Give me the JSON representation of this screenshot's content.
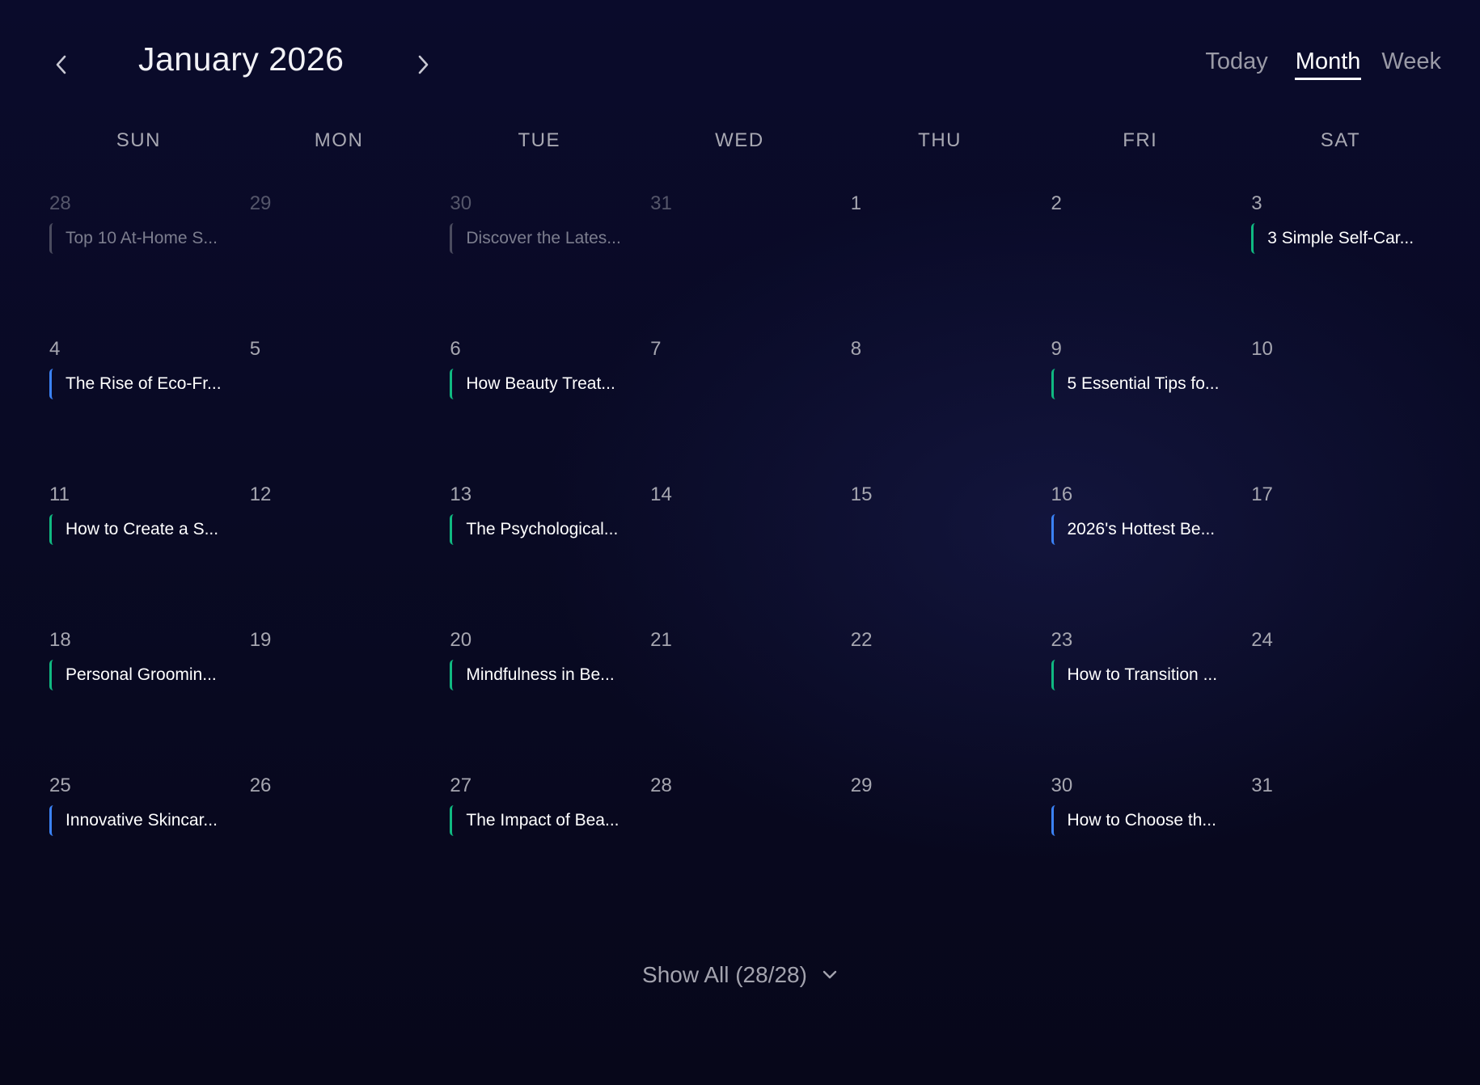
{
  "header": {
    "title": "January 2026",
    "prev_icon": "chevron-left-icon",
    "next_icon": "chevron-right-icon",
    "views": [
      {
        "label": "Today",
        "active": false
      },
      {
        "label": "Month",
        "active": true
      },
      {
        "label": "Week",
        "active": false
      }
    ]
  },
  "weekdays": [
    "SUN",
    "MON",
    "TUE",
    "WED",
    "THU",
    "FRI",
    "SAT"
  ],
  "colors": {
    "green": "#10b981",
    "blue": "#3b82f6",
    "gray": "#4a4b5e"
  },
  "weeks": [
    [
      {
        "date": "28",
        "muted": true,
        "event": {
          "title": "Top 10 At-Home S...",
          "color": "gray"
        }
      },
      {
        "date": "29",
        "muted": true
      },
      {
        "date": "30",
        "muted": true,
        "event": {
          "title": "Discover the Lates...",
          "color": "gray"
        }
      },
      {
        "date": "31",
        "muted": true
      },
      {
        "date": "1"
      },
      {
        "date": "2"
      },
      {
        "date": "3",
        "event": {
          "title": "3 Simple Self-Car...",
          "color": "green"
        }
      }
    ],
    [
      {
        "date": "4",
        "event": {
          "title": "The Rise of Eco-Fr...",
          "color": "blue"
        }
      },
      {
        "date": "5"
      },
      {
        "date": "6",
        "event": {
          "title": "How Beauty Treat...",
          "color": "green"
        }
      },
      {
        "date": "7"
      },
      {
        "date": "8"
      },
      {
        "date": "9",
        "event": {
          "title": "5 Essential Tips fo...",
          "color": "green"
        }
      },
      {
        "date": "10"
      }
    ],
    [
      {
        "date": "11",
        "event": {
          "title": "How to Create a S...",
          "color": "green"
        }
      },
      {
        "date": "12"
      },
      {
        "date": "13",
        "event": {
          "title": "The Psychological...",
          "color": "green"
        }
      },
      {
        "date": "14"
      },
      {
        "date": "15"
      },
      {
        "date": "16",
        "event": {
          "title": "2026's Hottest Be...",
          "color": "blue"
        }
      },
      {
        "date": "17"
      }
    ],
    [
      {
        "date": "18",
        "event": {
          "title": "Personal Groomin...",
          "color": "green"
        }
      },
      {
        "date": "19"
      },
      {
        "date": "20",
        "event": {
          "title": "Mindfulness in Be...",
          "color": "green"
        }
      },
      {
        "date": "21"
      },
      {
        "date": "22"
      },
      {
        "date": "23",
        "event": {
          "title": "How to Transition ...",
          "color": "green"
        }
      },
      {
        "date": "24"
      }
    ],
    [
      {
        "date": "25",
        "event": {
          "title": "Innovative Skincar...",
          "color": "blue"
        }
      },
      {
        "date": "26"
      },
      {
        "date": "27",
        "event": {
          "title": "The Impact of Bea...",
          "color": "green"
        }
      },
      {
        "date": "28"
      },
      {
        "date": "29"
      },
      {
        "date": "30",
        "event": {
          "title": "How to Choose th...",
          "color": "blue"
        }
      },
      {
        "date": "31"
      }
    ]
  ],
  "footer": {
    "show_all_label": "Show All (28/28)",
    "icon": "chevron-down-icon"
  }
}
